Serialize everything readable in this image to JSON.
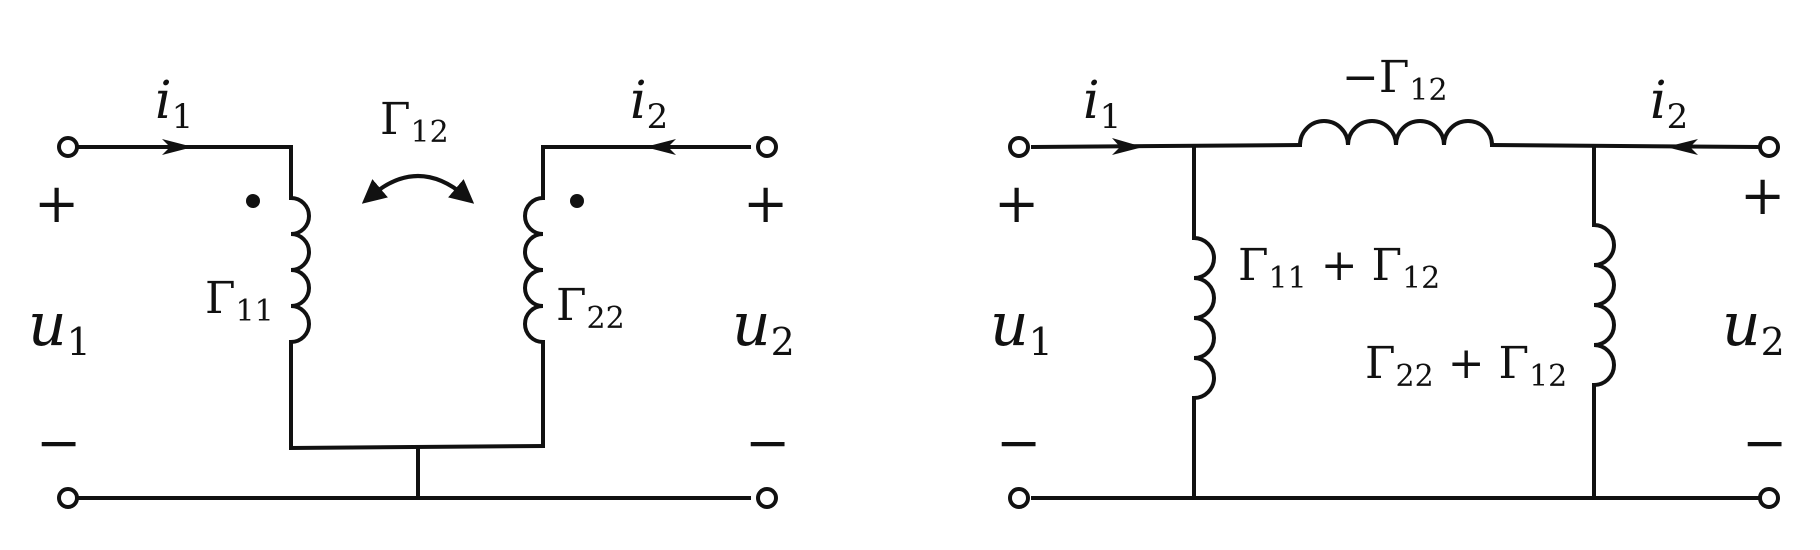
{
  "diagrams": [
    {
      "id": "coupled-inductors",
      "labels": {
        "current_1": "i",
        "current_1_sub": "1",
        "current_2": "i",
        "current_2_sub": "2",
        "voltage_1": "u",
        "voltage_1_sub": "1",
        "voltage_2": "u",
        "voltage_2_sub": "2",
        "plus_left": "+",
        "minus_left": "−",
        "plus_right": "+",
        "minus_right": "−",
        "mutual": "Γ",
        "mutual_sub": "12",
        "inductor_1": "Γ",
        "inductor_1_sub": "11",
        "inductor_2": "Γ",
        "inductor_2_sub": "22"
      }
    },
    {
      "id": "t-equivalent",
      "labels": {
        "current_1": "i",
        "current_1_sub": "1",
        "current_2": "i",
        "current_2_sub": "2",
        "voltage_1": "u",
        "voltage_1_sub": "1",
        "voltage_2": "u",
        "voltage_2_sub": "2",
        "plus_left": "+",
        "minus_left": "−",
        "plus_right": "+",
        "minus_right": "−",
        "series_inductor_prefix": "−Γ",
        "series_inductor_sub": "12",
        "shunt_1_a": "Γ",
        "shunt_1_a_sub": "11",
        "shunt_1_plus": " + Γ",
        "shunt_1_b_sub": "12",
        "shunt_2_a": "Γ",
        "shunt_2_a_sub": "22",
        "shunt_2_plus": " + Γ",
        "shunt_2_b_sub": "12"
      }
    }
  ]
}
